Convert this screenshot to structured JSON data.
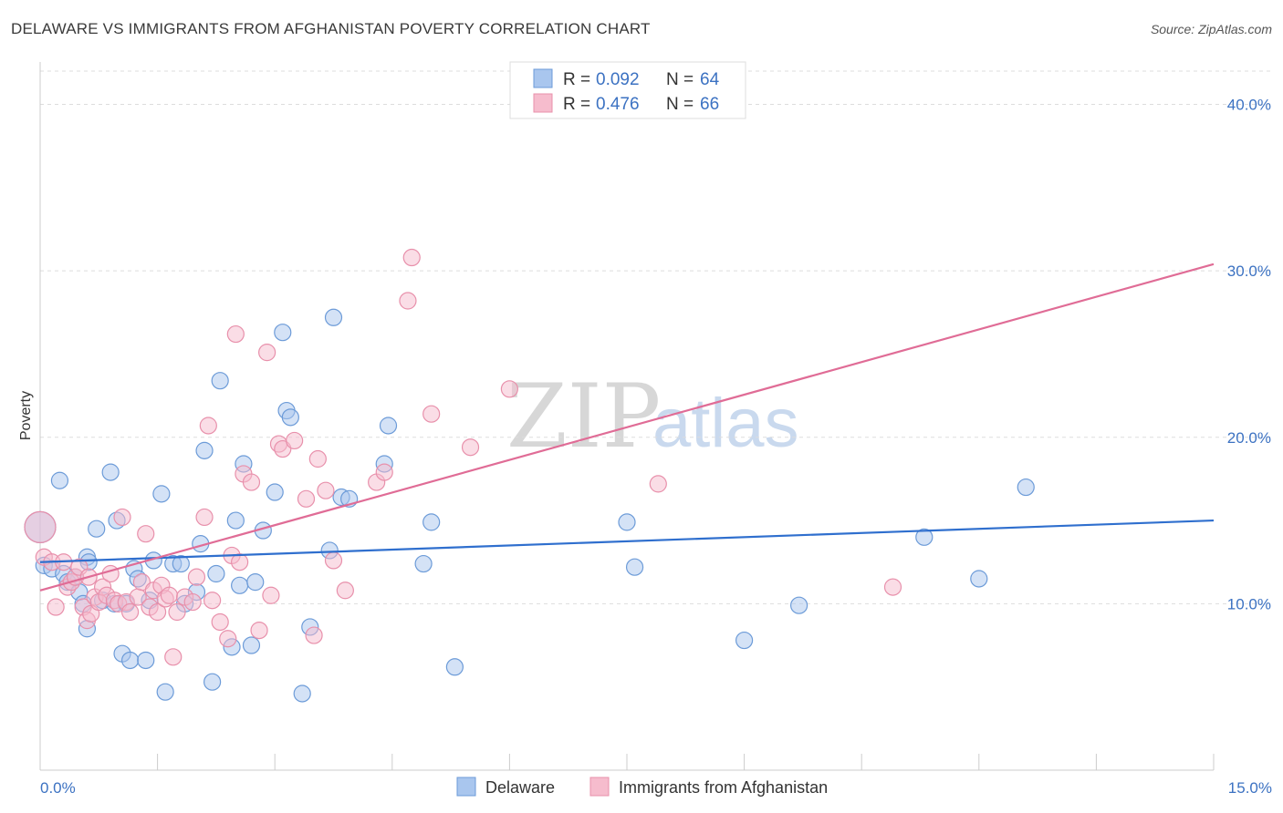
{
  "title": "DELAWARE VS IMMIGRANTS FROM AFGHANISTAN POVERTY CORRELATION CHART",
  "source": "Source: ZipAtlas.com",
  "watermark": {
    "zip": "ZIP",
    "atlas": "atlas"
  },
  "colors": {
    "blue_fill": "#a9c6ee",
    "blue_stroke": "#6c9bd8",
    "blue_line": "#2f6fce",
    "pink_fill": "#f6bccd",
    "pink_stroke": "#e890ab",
    "pink_line": "#e06c96",
    "tick_text": "#3c72c2",
    "grid": "#dddddd"
  },
  "legend": {
    "rows": [
      {
        "r_label": "R =",
        "r_value": "0.092",
        "n_label": "N =",
        "n_value": "64"
      },
      {
        "r_label": "R =",
        "r_value": "0.476",
        "n_label": "N =",
        "n_value": "66"
      }
    ]
  },
  "bottom_legend": [
    "Delaware",
    "Immigrants from Afghanistan"
  ],
  "chart_data": {
    "type": "scatter",
    "title": "DELAWARE VS IMMIGRANTS FROM AFGHANISTAN POVERTY CORRELATION CHART",
    "xlabel": "",
    "ylabel": "Poverty",
    "xlim": [
      0,
      15
    ],
    "ylim": [
      0,
      42
    ],
    "x_tick_labels": [
      "0.0%",
      "15.0%"
    ],
    "y_ticks": [
      10,
      20,
      30,
      40
    ],
    "y_tick_labels": [
      "10.0%",
      "20.0%",
      "30.0%",
      "40.0%"
    ],
    "grid": "horizontal dashed",
    "legend_position": "top-center",
    "series": [
      {
        "name": "Delaware",
        "color": "#a9c6ee",
        "trend": {
          "x": [
            0,
            15
          ],
          "y": [
            12.5,
            15.0
          ]
        },
        "points": [
          [
            0.0,
            14.6,
            2
          ],
          [
            0.05,
            12.3,
            1
          ],
          [
            0.15,
            12.1,
            1
          ],
          [
            0.25,
            17.4,
            1
          ],
          [
            0.3,
            11.8,
            1
          ],
          [
            0.35,
            11.3,
            1
          ],
          [
            0.45,
            11.6,
            1
          ],
          [
            0.5,
            10.7,
            1
          ],
          [
            0.55,
            10.0,
            1
          ],
          [
            0.6,
            8.5,
            1
          ],
          [
            0.6,
            12.8,
            1
          ],
          [
            0.62,
            12.5,
            1
          ],
          [
            0.72,
            14.5,
            1
          ],
          [
            0.8,
            10.2,
            1
          ],
          [
            0.9,
            17.9,
            1
          ],
          [
            0.95,
            10.0,
            1
          ],
          [
            0.98,
            15.0,
            1
          ],
          [
            1.05,
            7.0,
            1
          ],
          [
            1.1,
            10.0,
            1
          ],
          [
            1.15,
            6.6,
            1
          ],
          [
            1.2,
            12.1,
            1
          ],
          [
            1.25,
            11.5,
            1
          ],
          [
            1.35,
            6.6,
            1
          ],
          [
            1.4,
            10.2,
            1
          ],
          [
            1.45,
            12.6,
            1
          ],
          [
            1.55,
            16.6,
            1
          ],
          [
            1.6,
            4.7,
            1
          ],
          [
            1.7,
            12.4,
            1
          ],
          [
            1.8,
            12.4,
            1
          ],
          [
            1.85,
            10.0,
            1
          ],
          [
            2.0,
            10.7,
            1
          ],
          [
            2.05,
            13.6,
            1
          ],
          [
            2.1,
            19.2,
            1
          ],
          [
            2.2,
            5.3,
            1
          ],
          [
            2.25,
            11.8,
            1
          ],
          [
            2.3,
            23.4,
            1
          ],
          [
            2.45,
            7.4,
            1
          ],
          [
            2.5,
            15.0,
            1
          ],
          [
            2.55,
            11.1,
            1
          ],
          [
            2.6,
            18.4,
            1
          ],
          [
            2.7,
            7.5,
            1
          ],
          [
            2.75,
            11.3,
            1
          ],
          [
            2.85,
            14.4,
            1
          ],
          [
            3.0,
            16.7,
            1
          ],
          [
            3.1,
            26.3,
            1
          ],
          [
            3.15,
            21.6,
            1
          ],
          [
            3.2,
            21.2,
            1
          ],
          [
            3.35,
            4.6,
            1
          ],
          [
            3.45,
            8.6,
            1
          ],
          [
            3.7,
            13.2,
            1
          ],
          [
            3.75,
            27.2,
            1
          ],
          [
            3.85,
            16.4,
            1
          ],
          [
            3.95,
            16.3,
            1
          ],
          [
            4.4,
            18.4,
            1
          ],
          [
            4.45,
            20.7,
            1
          ],
          [
            4.9,
            12.4,
            1
          ],
          [
            5.0,
            14.9,
            1
          ],
          [
            5.3,
            6.2,
            1
          ],
          [
            7.5,
            14.9,
            1
          ],
          [
            7.6,
            12.2,
            1
          ],
          [
            9.0,
            7.8,
            1
          ],
          [
            9.7,
            9.9,
            1
          ],
          [
            11.3,
            14.0,
            1
          ],
          [
            12.0,
            11.5,
            1
          ],
          [
            12.6,
            17.0,
            1
          ]
        ]
      },
      {
        "name": "Immigrants from Afghanistan",
        "color": "#f6bccd",
        "trend": {
          "x": [
            0,
            15
          ],
          "y": [
            10.8,
            30.4
          ]
        },
        "points": [
          [
            0.0,
            14.6,
            2
          ],
          [
            0.05,
            12.8,
            1
          ],
          [
            0.15,
            12.5,
            1
          ],
          [
            0.2,
            9.8,
            1
          ],
          [
            0.3,
            12.5,
            1
          ],
          [
            0.35,
            11.0,
            1
          ],
          [
            0.4,
            11.3,
            1
          ],
          [
            0.45,
            11.6,
            1
          ],
          [
            0.5,
            12.2,
            1
          ],
          [
            0.55,
            9.8,
            1
          ],
          [
            0.6,
            9.0,
            1
          ],
          [
            0.62,
            11.6,
            1
          ],
          [
            0.65,
            9.4,
            1
          ],
          [
            0.7,
            10.4,
            1
          ],
          [
            0.75,
            10.1,
            1
          ],
          [
            0.8,
            11.0,
            1
          ],
          [
            0.85,
            10.5,
            1
          ],
          [
            0.9,
            11.8,
            1
          ],
          [
            0.95,
            10.2,
            1
          ],
          [
            1.0,
            10.0,
            1
          ],
          [
            1.05,
            15.2,
            1
          ],
          [
            1.1,
            10.1,
            1
          ],
          [
            1.15,
            9.5,
            1
          ],
          [
            1.25,
            10.4,
            1
          ],
          [
            1.3,
            11.3,
            1
          ],
          [
            1.35,
            14.2,
            1
          ],
          [
            1.4,
            9.8,
            1
          ],
          [
            1.45,
            10.8,
            1
          ],
          [
            1.5,
            9.5,
            1
          ],
          [
            1.55,
            11.1,
            1
          ],
          [
            1.6,
            10.3,
            1
          ],
          [
            1.65,
            10.5,
            1
          ],
          [
            1.7,
            6.8,
            1
          ],
          [
            1.75,
            9.5,
            1
          ],
          [
            1.85,
            10.4,
            1
          ],
          [
            1.95,
            10.1,
            1
          ],
          [
            2.0,
            11.6,
            1
          ],
          [
            2.1,
            15.2,
            1
          ],
          [
            2.15,
            20.7,
            1
          ],
          [
            2.2,
            10.2,
            1
          ],
          [
            2.3,
            8.9,
            1
          ],
          [
            2.4,
            7.9,
            1
          ],
          [
            2.45,
            12.9,
            1
          ],
          [
            2.5,
            26.2,
            1
          ],
          [
            2.55,
            12.5,
            1
          ],
          [
            2.6,
            17.8,
            1
          ],
          [
            2.7,
            17.3,
            1
          ],
          [
            2.8,
            8.4,
            1
          ],
          [
            2.9,
            25.1,
            1
          ],
          [
            2.95,
            10.5,
            1
          ],
          [
            3.05,
            19.6,
            1
          ],
          [
            3.1,
            19.3,
            1
          ],
          [
            3.25,
            19.8,
            1
          ],
          [
            3.4,
            16.3,
            1
          ],
          [
            3.5,
            8.1,
            1
          ],
          [
            3.55,
            18.7,
            1
          ],
          [
            3.65,
            16.8,
            1
          ],
          [
            3.75,
            12.6,
            1
          ],
          [
            3.9,
            10.8,
            1
          ],
          [
            4.3,
            17.3,
            1
          ],
          [
            4.4,
            17.9,
            1
          ],
          [
            4.75,
            30.8,
            1
          ],
          [
            4.7,
            28.2,
            1
          ],
          [
            5.0,
            21.4,
            1
          ],
          [
            5.5,
            19.4,
            1
          ],
          [
            6.0,
            22.9,
            1
          ],
          [
            7.9,
            17.2,
            1
          ],
          [
            10.9,
            11.0,
            1
          ]
        ]
      }
    ]
  }
}
